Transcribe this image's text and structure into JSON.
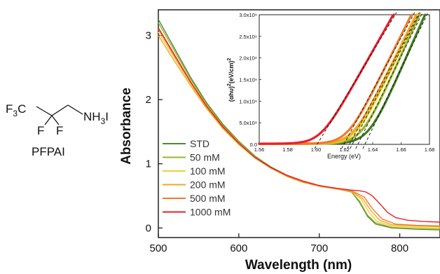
{
  "molecule": {
    "name": "PFPAI",
    "f3c_label": "F",
    "f3c_sub": "3",
    "c_label": "C",
    "nh3i_label": "NH",
    "nh3i_sub": "3",
    "nh3i_tail": "I",
    "f1_label": "F",
    "f2_label": "F"
  },
  "chart_data": [
    {
      "type": "line",
      "xlabel": "Wavelength (nm)",
      "ylabel": "Absorbance",
      "xlim": [
        500,
        850
      ],
      "ylim": [
        -0.15,
        3.4
      ],
      "x_ticks": [
        500,
        600,
        700,
        800
      ],
      "y_ticks": [
        0,
        1,
        2,
        3
      ],
      "legend_position": "bottom-left",
      "series": [
        {
          "name": "STD",
          "color": "#4e8a2e",
          "points": [
            [
              500,
              3.25
            ],
            [
              520,
              2.8
            ],
            [
              540,
              2.35
            ],
            [
              560,
              1.95
            ],
            [
              580,
              1.62
            ],
            [
              600,
              1.35
            ],
            [
              620,
              1.12
            ],
            [
              640,
              0.95
            ],
            [
              660,
              0.82
            ],
            [
              680,
              0.73
            ],
            [
              700,
              0.66
            ],
            [
              720,
              0.62
            ],
            [
              740,
              0.56
            ],
            [
              750,
              0.4
            ],
            [
              760,
              0.18
            ],
            [
              770,
              0.06
            ],
            [
              790,
              0.0
            ],
            [
              820,
              -0.02
            ],
            [
              850,
              -0.03
            ]
          ]
        },
        {
          "name": "50 mM",
          "color": "#9bb52a",
          "points": [
            [
              500,
              3.2
            ],
            [
              520,
              2.76
            ],
            [
              540,
              2.32
            ],
            [
              560,
              1.93
            ],
            [
              580,
              1.6
            ],
            [
              600,
              1.34
            ],
            [
              620,
              1.11
            ],
            [
              640,
              0.94
            ],
            [
              660,
              0.81
            ],
            [
              680,
              0.72
            ],
            [
              700,
              0.65
            ],
            [
              720,
              0.61
            ],
            [
              740,
              0.56
            ],
            [
              750,
              0.42
            ],
            [
              760,
              0.2
            ],
            [
              770,
              0.08
            ],
            [
              790,
              0.01
            ],
            [
              820,
              -0.01
            ],
            [
              850,
              -0.02
            ]
          ]
        },
        {
          "name": "100 mM",
          "color": "#e8d23c",
          "points": [
            [
              500,
              3.05
            ],
            [
              520,
              2.65
            ],
            [
              540,
              2.25
            ],
            [
              560,
              1.88
            ],
            [
              580,
              1.56
            ],
            [
              600,
              1.31
            ],
            [
              620,
              1.09
            ],
            [
              640,
              0.93
            ],
            [
              660,
              0.8
            ],
            [
              680,
              0.71
            ],
            [
              700,
              0.65
            ],
            [
              720,
              0.61
            ],
            [
              740,
              0.57
            ],
            [
              752,
              0.45
            ],
            [
              762,
              0.24
            ],
            [
              772,
              0.1
            ],
            [
              790,
              0.03
            ],
            [
              820,
              0.01
            ],
            [
              850,
              0.0
            ]
          ]
        },
        {
          "name": "200 mM",
          "color": "#f5a623",
          "points": [
            [
              500,
              3.0
            ],
            [
              520,
              2.6
            ],
            [
              540,
              2.22
            ],
            [
              560,
              1.86
            ],
            [
              580,
              1.55
            ],
            [
              600,
              1.3
            ],
            [
              620,
              1.09
            ],
            [
              640,
              0.93
            ],
            [
              660,
              0.8
            ],
            [
              680,
              0.71
            ],
            [
              700,
              0.65
            ],
            [
              720,
              0.61
            ],
            [
              740,
              0.57
            ],
            [
              754,
              0.46
            ],
            [
              764,
              0.27
            ],
            [
              775,
              0.12
            ],
            [
              790,
              0.05
            ],
            [
              820,
              0.03
            ],
            [
              850,
              0.02
            ]
          ]
        },
        {
          "name": "500 mM",
          "color": "#f07a2a",
          "points": [
            [
              500,
              3.1
            ],
            [
              520,
              2.68
            ],
            [
              540,
              2.27
            ],
            [
              560,
              1.89
            ],
            [
              580,
              1.57
            ],
            [
              600,
              1.32
            ],
            [
              620,
              1.1
            ],
            [
              640,
              0.94
            ],
            [
              660,
              0.81
            ],
            [
              680,
              0.72
            ],
            [
              700,
              0.66
            ],
            [
              720,
              0.62
            ],
            [
              740,
              0.58
            ],
            [
              756,
              0.48
            ],
            [
              766,
              0.3
            ],
            [
              778,
              0.14
            ],
            [
              795,
              0.06
            ],
            [
              820,
              0.04
            ],
            [
              850,
              0.03
            ]
          ]
        },
        {
          "name": "1000 mM",
          "color": "#e8202a",
          "points": [
            [
              500,
              3.12
            ],
            [
              520,
              2.7
            ],
            [
              540,
              2.28
            ],
            [
              560,
              1.9
            ],
            [
              580,
              1.58
            ],
            [
              600,
              1.32
            ],
            [
              620,
              1.1
            ],
            [
              640,
              0.94
            ],
            [
              660,
              0.82
            ],
            [
              680,
              0.73
            ],
            [
              700,
              0.66
            ],
            [
              720,
              0.62
            ],
            [
              740,
              0.59
            ],
            [
              750,
              0.58
            ],
            [
              758,
              0.56
            ],
            [
              766,
              0.5
            ],
            [
              775,
              0.38
            ],
            [
              785,
              0.24
            ],
            [
              795,
              0.16
            ],
            [
              810,
              0.12
            ],
            [
              830,
              0.1
            ],
            [
              850,
              0.09
            ]
          ]
        }
      ]
    },
    {
      "type": "line",
      "xlabel": "Energy (eV)",
      "ylabel": "(αhν)²(eV/cm)²",
      "ylabel_parts": {
        "a": "(αhυ)",
        "b": "2",
        "c": "(eV/cm)",
        "d": "2"
      },
      "xlim": [
        1.56,
        1.68
      ],
      "ylim": [
        0,
        3000000000.0
      ],
      "x_ticks": [
        "1.56",
        "1.58",
        "1.60",
        "1.62",
        "1.64",
        "1.66",
        "1.68"
      ],
      "y_ticks": [
        "0.0",
        "5.0x10⁸",
        "1.0x10⁹",
        "1.5x10⁹",
        "2.0x10⁹",
        "2.5x10⁹",
        "3.0x10⁹"
      ],
      "y_tick_values": [
        0,
        500000000.0,
        1000000000.0,
        1500000000.0,
        2000000000.0,
        2500000000.0,
        3000000000.0
      ],
      "series": [
        {
          "name": "STD",
          "color": "#3e7a22",
          "onset": 1.637,
          "slope": 75000000000.0
        },
        {
          "name": "50 mM",
          "color": "#9bb52a",
          "onset": 1.632,
          "slope": 73000000000.0
        },
        {
          "name": "100 mM",
          "color": "#e8d23c",
          "onset": 1.628,
          "slope": 69000000000.0
        },
        {
          "name": "200 mM",
          "color": "#f5a623",
          "onset": 1.626,
          "slope": 67000000000.0
        },
        {
          "name": "500 mM",
          "color": "#f07a2a",
          "onset": 1.622,
          "slope": 66000000000.0
        },
        {
          "name": "1000 mM",
          "color": "#e8202a",
          "onset": 1.603,
          "slope": 58000000000.0
        }
      ]
    }
  ]
}
